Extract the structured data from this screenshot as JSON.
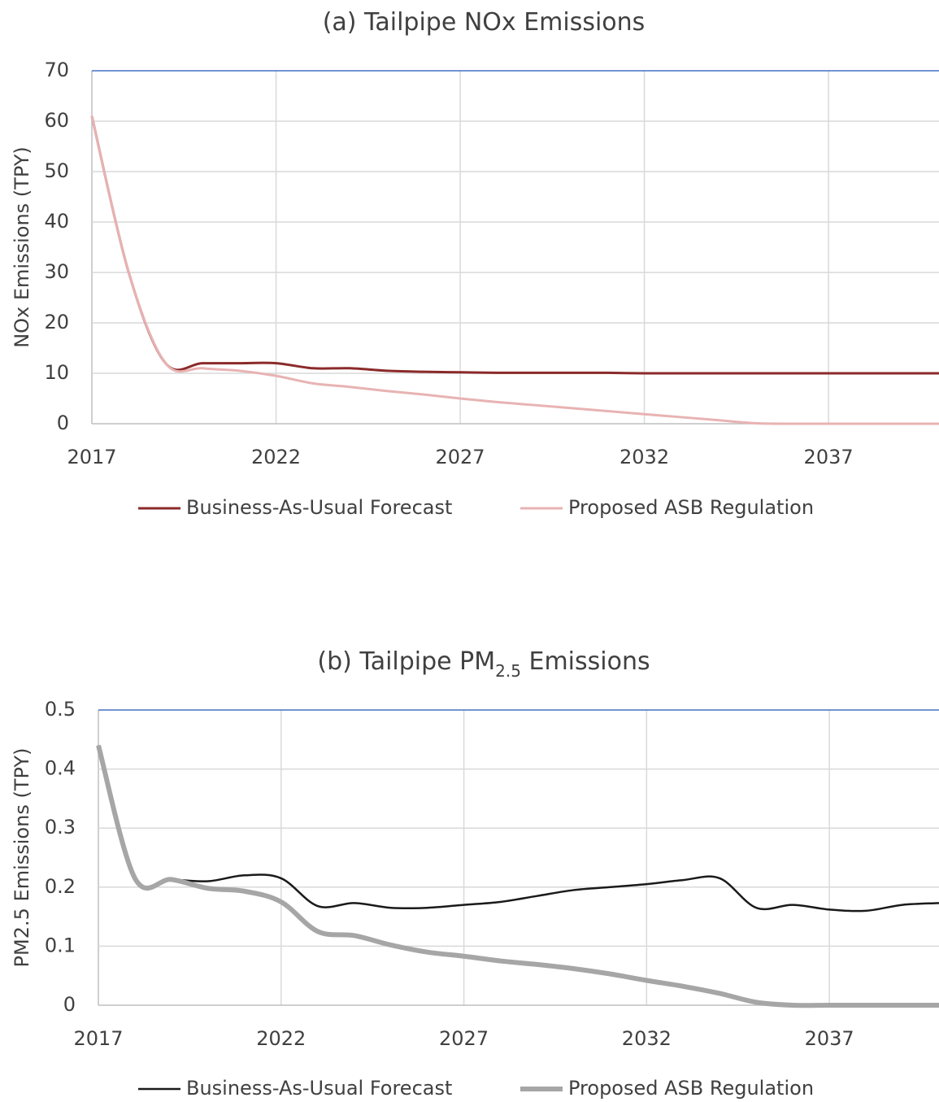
{
  "chart_data": [
    {
      "type": "line",
      "title": [
        "(a) Tailpipe NOx Emissions"
      ],
      "y_label": "NOx  Emissions (TPY)",
      "x": [
        2017,
        2018,
        2019,
        2020,
        2021,
        2022,
        2023,
        2024,
        2025,
        2026,
        2027,
        2028,
        2029,
        2030,
        2031,
        2032,
        2033,
        2034,
        2035,
        2036,
        2037,
        2038,
        2039,
        2040
      ],
      "xlim": [
        2017,
        2040
      ],
      "xticks": [
        2017,
        2022,
        2027,
        2032,
        2037
      ],
      "ylim": [
        0,
        70
      ],
      "yticks": [
        0,
        10,
        20,
        30,
        40,
        50,
        60,
        70
      ],
      "grid": true,
      "legend": "bottom",
      "series": [
        {
          "name": "Business-As-Usual Forecast",
          "color": "#8b2a2a",
          "values": [
            61,
            30,
            12,
            12,
            12,
            12,
            11,
            11,
            10.5,
            10.3,
            10.2,
            10.1,
            10.1,
            10.1,
            10.1,
            10,
            10,
            10,
            10,
            10,
            10,
            10,
            10,
            10
          ]
        },
        {
          "name": "Proposed ASB Regulation",
          "color": "#e8b3b3",
          "values": [
            61,
            30,
            12,
            11,
            10.5,
            9.5,
            8,
            7.3,
            6.5,
            5.8,
            5,
            4.3,
            3.7,
            3.1,
            2.5,
            1.9,
            1.3,
            0.7,
            0.1,
            0,
            0,
            0,
            0,
            0
          ]
        }
      ]
    },
    {
      "type": "line",
      "title": [
        "(b) Tailpipe PM",
        "2.5",
        " Emissions"
      ],
      "y_label": "PM2.5 Emissions (TPY)",
      "x": [
        2017,
        2018,
        2019,
        2020,
        2021,
        2022,
        2023,
        2024,
        2025,
        2026,
        2027,
        2028,
        2029,
        2030,
        2031,
        2032,
        2033,
        2034,
        2035,
        2036,
        2037,
        2038,
        2039,
        2040
      ],
      "xlim": [
        2017,
        2040
      ],
      "xticks": [
        2017,
        2022,
        2027,
        2032,
        2037
      ],
      "ylim": [
        0,
        0.5
      ],
      "yticks": [
        0,
        0.1,
        0.2,
        0.3,
        0.4,
        0.5
      ],
      "grid": true,
      "legend": "bottom",
      "series": [
        {
          "name": "Business-As-Usual Forecast",
          "color": "#1a1a1a",
          "values": [
            0.44,
            0.215,
            0.213,
            0.21,
            0.22,
            0.215,
            0.168,
            0.173,
            0.165,
            0.165,
            0.17,
            0.175,
            0.185,
            0.195,
            0.2,
            0.205,
            0.212,
            0.215,
            0.165,
            0.17,
            0.162,
            0.16,
            0.17,
            0.173
          ]
        },
        {
          "name": "Proposed ASB Regulation",
          "color": "#a6a6a6",
          "values": [
            0.44,
            0.215,
            0.213,
            0.198,
            0.193,
            0.175,
            0.125,
            0.118,
            0.102,
            0.09,
            0.083,
            0.075,
            0.069,
            0.062,
            0.053,
            0.042,
            0.032,
            0.02,
            0.005,
            0,
            0,
            0,
            0,
            0
          ]
        }
      ]
    }
  ]
}
